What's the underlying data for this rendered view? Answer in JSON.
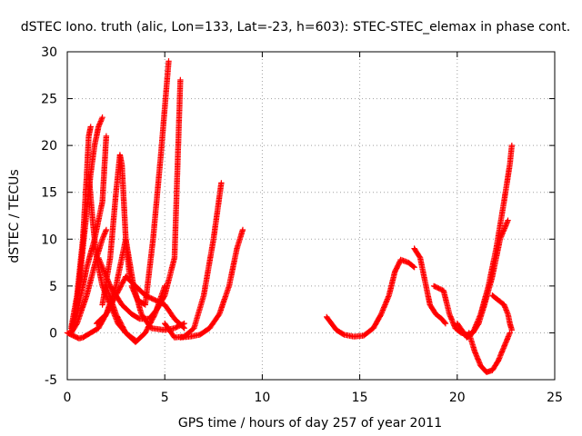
{
  "chart_data": {
    "type": "scatter",
    "title": "dSTEC Iono. truth (alic, Lon=133, Lat=-23, h=603): STEC-STEC_elemax in phase cont.",
    "xlabel": "GPS time / hours of day 257 of year 2011",
    "ylabel": "dSTEC  / TECUs",
    "xlim": [
      0,
      25
    ],
    "ylim": [
      -5,
      30
    ],
    "x_ticks": [
      "0",
      "5",
      "10",
      "15",
      "20",
      "25"
    ],
    "y_ticks": [
      "-5",
      "0",
      "5",
      "10",
      "15",
      "20",
      "25",
      "30"
    ],
    "grid": true,
    "marker": "+",
    "color": "#ff0000",
    "series": [
      {
        "x": [
          0.2,
          0.5,
          0.8,
          1.0,
          1.1,
          1.2
        ],
        "y": [
          0.5,
          4,
          10,
          17,
          21,
          22
        ]
      },
      {
        "x": [
          1.1,
          1.3,
          1.5,
          1.8,
          2.2,
          2.6,
          3.0,
          3.3,
          3.5
        ],
        "y": [
          17,
          12,
          8,
          5,
          3,
          1,
          0,
          -0.5,
          -0.8
        ]
      },
      {
        "x": [
          0.2,
          0.4,
          0.6,
          0.8,
          1.0,
          1.2,
          1.4,
          1.6,
          1.8
        ],
        "y": [
          0,
          2,
          5,
          9,
          13,
          17,
          20,
          22,
          23
        ]
      },
      {
        "x": [
          0.2,
          0.5,
          0.8,
          1.0,
          1.4,
          1.8,
          2.0
        ],
        "y": [
          0,
          2,
          5,
          7,
          10,
          14,
          21
        ]
      },
      {
        "x": [
          1.6,
          2.2,
          2.8,
          3.3,
          3.7,
          4.2,
          4.6,
          5.0,
          5.5,
          5.8
        ],
        "y": [
          8,
          5,
          3,
          2,
          1.5,
          1.5,
          2.5,
          4,
          8,
          27
        ]
      },
      {
        "x": [
          0.2,
          0.5,
          1.0,
          1.5,
          1.8,
          2.0
        ],
        "y": [
          0,
          1,
          4,
          8,
          10,
          11
        ]
      },
      {
        "x": [
          1.5,
          2.0,
          2.5,
          3.0,
          3.5,
          4.0,
          4.5,
          5.0,
          5.5,
          6.0
        ],
        "y": [
          1,
          2,
          4,
          6,
          5,
          4,
          3.5,
          3,
          1.5,
          0.5
        ]
      },
      {
        "x": [
          3.3,
          3.6,
          4.0,
          4.4,
          4.8,
          5.2
        ],
        "y": [
          5,
          3.5,
          3,
          10,
          19,
          29
        ]
      },
      {
        "x": [
          0.0,
          0.3,
          0.6,
          0.8,
          1.2,
          1.6,
          2.0,
          2.5,
          3.0,
          3.4,
          3.8,
          4.3,
          5.0,
          5.5,
          6.0
        ],
        "y": [
          0,
          -0.3,
          -0.6,
          -0.5,
          0,
          0.5,
          2,
          5,
          10,
          5,
          2,
          0.5,
          0.3,
          0.5,
          1
        ]
      },
      {
        "x": [
          1.8,
          2.2,
          2.5,
          2.7,
          2.8,
          2.9,
          3.0,
          3.2
        ],
        "y": [
          3,
          8,
          15,
          19,
          18,
          14,
          10,
          6
        ]
      },
      {
        "x": [
          2.0,
          2.5,
          3.0,
          3.5,
          4.0,
          4.5,
          5.0
        ],
        "y": [
          5,
          2,
          0,
          -1,
          0,
          2,
          5
        ]
      },
      {
        "x": [
          5.0,
          5.5,
          6.0,
          6.5,
          7.0,
          7.5,
          7.9
        ],
        "y": [
          1,
          -0.5,
          -0.4,
          0.5,
          4,
          10,
          16
        ]
      },
      {
        "x": [
          5.8,
          6.3,
          6.8,
          7.3,
          7.8,
          8.3,
          8.7,
          9.0
        ],
        "y": [
          -0.5,
          -0.4,
          -0.2,
          0.5,
          2,
          5,
          9,
          11
        ]
      },
      {
        "x": [
          13.3,
          13.8,
          14.2,
          14.7,
          15.2,
          15.7,
          16.1,
          16.5,
          16.8,
          17.1,
          17.5,
          17.8
        ],
        "y": [
          1.7,
          0.3,
          -0.2,
          -0.4,
          -0.3,
          0.5,
          2,
          4,
          6.5,
          7.8,
          7.5,
          7
        ]
      },
      {
        "x": [
          17.8,
          18.1,
          18.4,
          18.6,
          18.9,
          19.2,
          19.4
        ],
        "y": [
          9,
          8,
          5,
          3,
          2,
          1.5,
          1
        ]
      },
      {
        "x": [
          18.8,
          19.3,
          19.6,
          19.9,
          20.2,
          20.5,
          20.8,
          21.1,
          21.4,
          21.8,
          22.2,
          22.6
        ],
        "y": [
          5,
          4.5,
          2,
          0.5,
          0,
          -0.2,
          0,
          1,
          3,
          6,
          10,
          12
        ]
      },
      {
        "x": [
          20.0,
          20.5,
          20.8,
          21.2,
          21.6,
          22.0,
          22.4,
          22.7,
          22.8
        ],
        "y": [
          1,
          -0.5,
          0,
          2,
          5,
          9,
          14,
          18,
          20
        ]
      },
      {
        "x": [
          20.6,
          20.9,
          21.2,
          21.5,
          21.8,
          22.1,
          22.4,
          22.7
        ],
        "y": [
          0,
          -2,
          -3.5,
          -4.2,
          -4,
          -3,
          -1.5,
          0
        ]
      },
      {
        "x": [
          21.8,
          22.1,
          22.4,
          22.6,
          22.7,
          22.8
        ],
        "y": [
          4,
          3.5,
          3,
          2,
          1,
          0.3
        ]
      }
    ]
  }
}
